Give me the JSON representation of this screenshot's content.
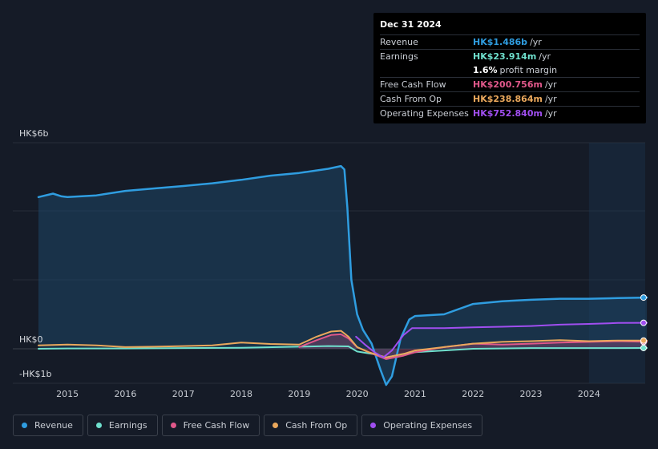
{
  "tooltip": {
    "date": "Dec 31 2024",
    "rows": [
      {
        "label": "Revenue",
        "value": "HK$1.486b",
        "unit": "/yr",
        "color": "#2f9de0"
      },
      {
        "label": "Earnings",
        "value": "HK$23.914m",
        "unit": "/yr",
        "color": "#6fe0cd"
      },
      {
        "label": "",
        "value": "1.6%",
        "unit": "profit margin",
        "color": "#ffffff"
      },
      {
        "label": "Free Cash Flow",
        "value": "HK$200.756m",
        "unit": "/yr",
        "color": "#e0588a"
      },
      {
        "label": "Cash From Op",
        "value": "HK$238.864m",
        "unit": "/yr",
        "color": "#eaa85c"
      },
      {
        "label": "Operating Expenses",
        "value": "HK$752.840m",
        "unit": "/yr",
        "color": "#a04ef0"
      }
    ]
  },
  "legend": [
    {
      "label": "Revenue",
      "color": "#2f9de0"
    },
    {
      "label": "Earnings",
      "color": "#6fe0cd"
    },
    {
      "label": "Free Cash Flow",
      "color": "#e0588a"
    },
    {
      "label": "Cash From Op",
      "color": "#eaa85c"
    },
    {
      "label": "Operating Expenses",
      "color": "#a04ef0"
    }
  ],
  "chart_data": {
    "type": "area",
    "ylim": [
      -1,
      6
    ],
    "y_tick_labels": [
      {
        "value": 6,
        "label": "HK$6b"
      },
      {
        "value": 0,
        "label": "HK$0"
      },
      {
        "value": -1,
        "label": "-HK$1b"
      }
    ],
    "x_ticks": [
      2015,
      2016,
      2017,
      2018,
      2019,
      2020,
      2021,
      2022,
      2023,
      2024
    ],
    "xlim": [
      2014.4,
      2025.0
    ],
    "forecast_start": 2024.0,
    "grid": true,
    "legend_position": "bottom",
    "series": [
      {
        "name": "Revenue",
        "color": "#2f9de0",
        "x": [
          2014.5,
          2014.75,
          2014.9,
          2015.0,
          2015.5,
          2016.0,
          2016.5,
          2017.0,
          2017.5,
          2018.0,
          2018.5,
          2019.0,
          2019.5,
          2019.72,
          2019.78,
          2019.83,
          2019.9,
          2020.0,
          2020.1,
          2020.25,
          2020.4,
          2020.5,
          2020.6,
          2020.75,
          2020.9,
          2021.0,
          2021.5,
          2022.0,
          2022.5,
          2023.0,
          2023.5,
          2024.0,
          2024.5,
          2025.0
        ],
        "y": [
          4.4,
          4.5,
          4.42,
          4.4,
          4.45,
          4.58,
          4.65,
          4.72,
          4.8,
          4.9,
          5.02,
          5.1,
          5.22,
          5.3,
          5.2,
          4.1,
          2.0,
          1.0,
          0.55,
          0.15,
          -0.6,
          -1.05,
          -0.8,
          0.3,
          0.85,
          0.95,
          1.0,
          1.3,
          1.38,
          1.42,
          1.45,
          1.45,
          1.47,
          1.486
        ]
      },
      {
        "name": "Earnings",
        "color": "#6fe0cd",
        "x": [
          2014.5,
          2015.0,
          2016.0,
          2017.0,
          2018.0,
          2019.0,
          2019.5,
          2019.85,
          2020.0,
          2020.3,
          2020.5,
          2020.8,
          2021.0,
          2021.5,
          2022.0,
          2022.5,
          2023.0,
          2023.5,
          2024.0,
          2024.5,
          2025.0
        ],
        "y": [
          0.0,
          0.01,
          0.01,
          0.02,
          0.03,
          0.06,
          0.08,
          0.07,
          -0.08,
          -0.16,
          -0.25,
          -0.15,
          -0.1,
          -0.05,
          0.0,
          0.01,
          0.02,
          0.02,
          0.02,
          0.02,
          0.024
        ]
      },
      {
        "name": "Free Cash Flow",
        "color": "#e0588a",
        "x": [
          2019.0,
          2019.3,
          2019.55,
          2019.72,
          2019.85,
          2020.0,
          2020.2,
          2020.5,
          2020.8,
          2021.0,
          2021.5,
          2022.0,
          2022.5,
          2023.0,
          2023.5,
          2024.0,
          2024.5,
          2025.0
        ],
        "y": [
          0.05,
          0.25,
          0.4,
          0.42,
          0.3,
          0.05,
          -0.1,
          -0.3,
          -0.2,
          -0.1,
          0.05,
          0.15,
          0.12,
          0.15,
          0.18,
          0.2,
          0.22,
          0.2
        ],
        "fill": true
      },
      {
        "name": "Cash From Op",
        "color": "#eaa85c",
        "x": [
          2014.5,
          2015.0,
          2015.5,
          2016.0,
          2016.5,
          2017.0,
          2017.5,
          2018.0,
          2018.5,
          2019.0,
          2019.3,
          2019.55,
          2019.72,
          2019.85,
          2020.0,
          2020.2,
          2020.5,
          2020.8,
          2021.0,
          2021.5,
          2022.0,
          2022.5,
          2023.0,
          2023.5,
          2024.0,
          2024.5,
          2025.0
        ],
        "y": [
          0.1,
          0.12,
          0.1,
          0.05,
          0.06,
          0.08,
          0.1,
          0.18,
          0.14,
          0.12,
          0.35,
          0.5,
          0.52,
          0.35,
          0.05,
          -0.1,
          -0.25,
          -0.15,
          -0.05,
          0.05,
          0.15,
          0.2,
          0.22,
          0.25,
          0.22,
          0.24,
          0.239
        ]
      },
      {
        "name": "Operating Expenses",
        "color": "#a04ef0",
        "x": [
          2019.98,
          2020.15,
          2020.3,
          2020.45,
          2020.6,
          2020.8,
          2020.95,
          2021.5,
          2022.0,
          2022.5,
          2023.0,
          2023.5,
          2024.0,
          2024.5,
          2025.0
        ],
        "y": [
          0.35,
          0.1,
          -0.1,
          -0.25,
          -0.05,
          0.4,
          0.6,
          0.6,
          0.62,
          0.64,
          0.66,
          0.7,
          0.72,
          0.75,
          0.753
        ]
      }
    ]
  }
}
